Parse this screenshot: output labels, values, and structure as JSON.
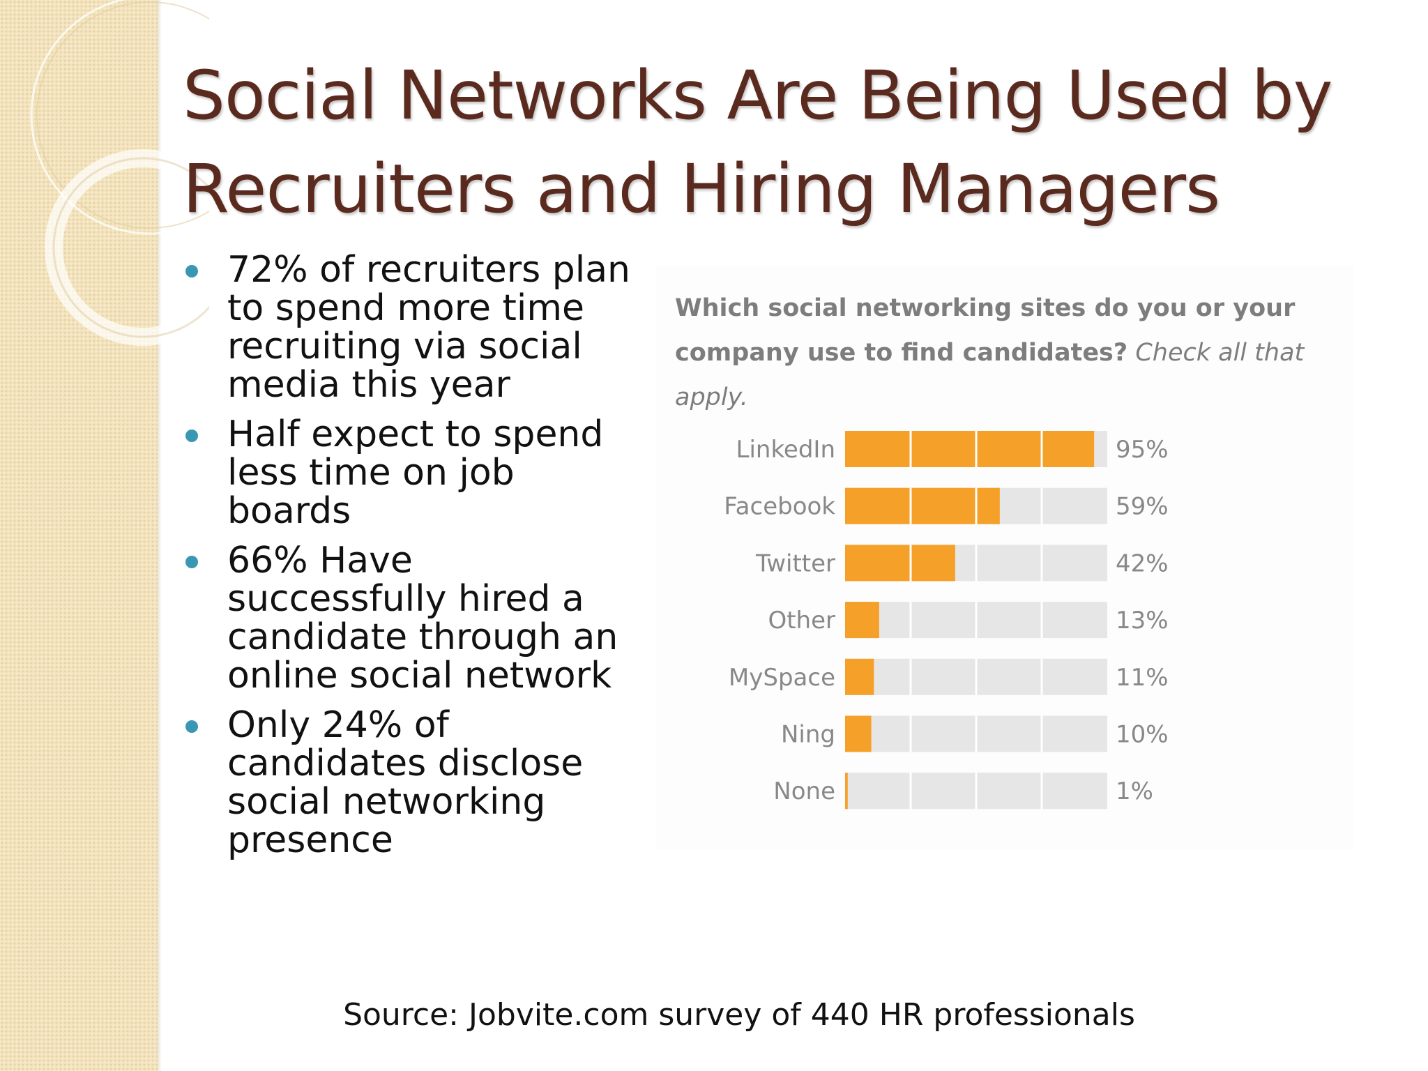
{
  "slide": {
    "title_line1": "Social Networks Are Being Used by",
    "title_line2": "Recruiters and Hiring Managers",
    "bullets": [
      "72% of recruiters plan to spend more time recruiting via social media this year",
      "Half expect to spend less time on job boards",
      "66% Have successfully hired a candidate through an online social network",
      "Only 24% of candidates disclose social networking presence"
    ],
    "source": "Source: Jobvite.com survey of 440 HR professionals",
    "colors": {
      "title": "#5a2a1e",
      "bullet": "#3a97b3",
      "sidebar": "#f3e3bd"
    }
  },
  "chart_question": {
    "bold": "Which social networking sites do you or your company use to find candidates?",
    "italic": "Check all that apply."
  },
  "chart_data": {
    "type": "bar",
    "orientation": "horizontal",
    "categories": [
      "LinkedIn",
      "Facebook",
      "Twitter",
      "Other",
      "MySpace",
      "Ning",
      "None"
    ],
    "values": [
      95,
      59,
      42,
      13,
      11,
      10,
      1
    ],
    "value_labels": [
      "95%",
      "59%",
      "42%",
      "13%",
      "11%",
      "10%",
      "1%"
    ],
    "xlim": [
      0,
      100
    ],
    "bar_color": "#f5a028",
    "track_color": "#e6e6e6",
    "grid": true
  }
}
